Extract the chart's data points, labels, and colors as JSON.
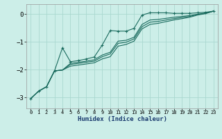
{
  "xlabel": "Humidex (Indice chaleur)",
  "bg_color": "#cceee8",
  "grid_color": "#aad8d0",
  "line_color": "#1a6b5e",
  "xlim": [
    -0.5,
    23.5
  ],
  "ylim": [
    -3.4,
    0.35
  ],
  "xticks": [
    0,
    1,
    2,
    3,
    4,
    5,
    6,
    7,
    8,
    9,
    10,
    11,
    12,
    13,
    14,
    15,
    16,
    17,
    18,
    19,
    20,
    21,
    22,
    23
  ],
  "yticks": [
    0,
    -1,
    -2,
    -3
  ],
  "x_data": [
    0,
    1,
    2,
    3,
    4,
    5,
    6,
    7,
    8,
    9,
    10,
    11,
    12,
    13,
    14,
    15,
    16,
    17,
    18,
    19,
    20,
    21,
    22,
    23
  ],
  "line1": [
    -3.05,
    -2.78,
    -2.62,
    -2.05,
    -1.22,
    -1.72,
    -1.68,
    -1.62,
    -1.55,
    -1.12,
    -0.6,
    -0.62,
    -0.62,
    -0.52,
    -0.04,
    0.04,
    0.04,
    0.04,
    0.02,
    0.02,
    0.02,
    0.04,
    0.06,
    0.1
  ],
  "line2": [
    -3.05,
    -2.78,
    -2.62,
    -2.05,
    -2.02,
    -1.78,
    -1.74,
    -1.7,
    -1.65,
    -1.48,
    -1.38,
    -0.98,
    -0.95,
    -0.84,
    -0.38,
    -0.22,
    -0.2,
    -0.16,
    -0.12,
    -0.09,
    -0.06,
    -0.01,
    0.03,
    0.1
  ],
  "line3": [
    -3.05,
    -2.78,
    -2.62,
    -2.05,
    -2.02,
    -1.82,
    -1.78,
    -1.74,
    -1.7,
    -1.54,
    -1.44,
    -1.06,
    -1.02,
    -0.9,
    -0.46,
    -0.3,
    -0.27,
    -0.22,
    -0.17,
    -0.13,
    -0.09,
    -0.02,
    0.02,
    0.1
  ],
  "line4": [
    -3.05,
    -2.78,
    -2.62,
    -2.05,
    -2.02,
    -1.88,
    -1.84,
    -1.8,
    -1.76,
    -1.62,
    -1.54,
    -1.16,
    -1.1,
    -0.98,
    -0.54,
    -0.38,
    -0.34,
    -0.28,
    -0.22,
    -0.17,
    -0.12,
    -0.04,
    0.01,
    0.1
  ]
}
